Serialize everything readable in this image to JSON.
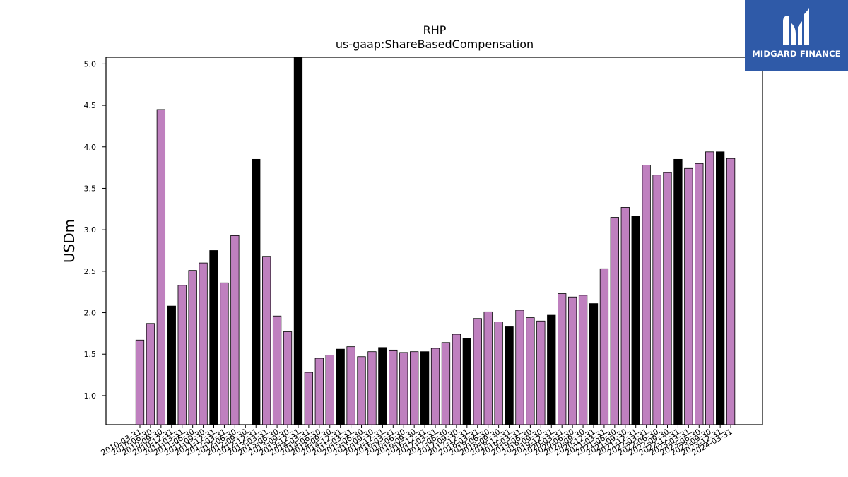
{
  "chart_data": {
    "type": "bar",
    "title": "RHP",
    "subtitle": "us-gaap:ShareBasedCompensation",
    "ylabel": "USDm",
    "xlabel": "",
    "ylim": [
      0.65,
      5.08
    ],
    "yticks": [
      "1.0",
      "1.5",
      "2.0",
      "2.5",
      "3.0",
      "3.5",
      "4.0",
      "4.5",
      "5.0"
    ],
    "grid": false,
    "colors": {
      "quarter": "#bf80bf",
      "year_end": "#000000",
      "edge": "#000000"
    },
    "categories": [
      "2010-03-31",
      "2010-06-30",
      "2010-09-30",
      "2010-12-31",
      "2011-03-31",
      "2011-06-30",
      "2011-09-30",
      "2011-12-31",
      "2012-03-31",
      "2012-06-30",
      "2012-09-30",
      "2012-12-31",
      "2013-03-31",
      "2013-06-30",
      "2013-09-30",
      "2013-12-31",
      "2014-03-31",
      "2014-06-30",
      "2014-09-30",
      "2014-12-31",
      "2015-03-31",
      "2015-06-30",
      "2015-09-30",
      "2015-12-31",
      "2016-03-31",
      "2016-06-30",
      "2016-09-30",
      "2016-12-31",
      "2017-03-31",
      "2017-06-30",
      "2017-09-30",
      "2017-12-31",
      "2018-03-31",
      "2018-06-30",
      "2018-09-30",
      "2018-12-31",
      "2019-03-31",
      "2019-06-30",
      "2019-09-30",
      "2019-12-31",
      "2020-03-31",
      "2020-06-30",
      "2020-09-30",
      "2020-12-31",
      "2021-03-31",
      "2021-06-30",
      "2021-09-30",
      "2021-12-31",
      "2022-03-31",
      "2022-06-30",
      "2022-09-30",
      "2022-12-31",
      "2023-03-31",
      "2023-06-30",
      "2023-09-30",
      "2023-12-31",
      "2024-03-31"
    ],
    "values": [
      1.67,
      1.87,
      4.45,
      2.08,
      2.33,
      2.51,
      2.6,
      2.75,
      2.36,
      2.93,
      null,
      3.85,
      2.68,
      1.96,
      1.77,
      5.08,
      1.28,
      1.45,
      1.49,
      1.56,
      1.59,
      1.47,
      1.53,
      1.58,
      1.55,
      1.52,
      1.53,
      1.53,
      1.57,
      1.64,
      1.74,
      1.69,
      1.93,
      2.01,
      1.89,
      1.83,
      2.03,
      1.94,
      1.9,
      1.97,
      2.23,
      2.19,
      2.21,
      2.11,
      2.53,
      3.15,
      3.27,
      3.16,
      3.78,
      3.66,
      3.69,
      3.85,
      3.74,
      3.8,
      3.94,
      3.94,
      3.86
    ],
    "year_end_flags": [
      0,
      0,
      0,
      1,
      0,
      0,
      0,
      1,
      0,
      0,
      0,
      1,
      0,
      0,
      0,
      1,
      0,
      0,
      0,
      1,
      0,
      0,
      0,
      1,
      0,
      0,
      0,
      1,
      0,
      0,
      0,
      1,
      0,
      0,
      0,
      1,
      0,
      0,
      0,
      1,
      0,
      0,
      0,
      1,
      0,
      0,
      0,
      1,
      0,
      0,
      0,
      1,
      0,
      0,
      0,
      1,
      0
    ]
  },
  "logo": {
    "text": "MIDGARD FINANCE",
    "icon": "midgard-logo-icon"
  }
}
